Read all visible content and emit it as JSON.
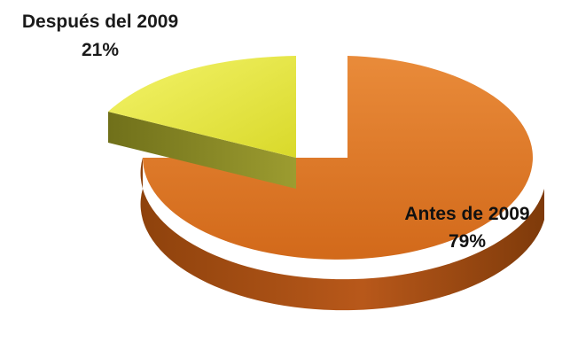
{
  "chart_data": {
    "type": "pie",
    "title": "",
    "style": "3d-exploded",
    "slices": [
      {
        "name": "Antes de 2009",
        "percent_label": "79%",
        "value": 79,
        "color": "#E07A22",
        "label_color": "#111111"
      },
      {
        "name": "Después del 2009",
        "percent_label": "21%",
        "value": 21,
        "color": "#E8E83A",
        "label_color": "#1A1A1A"
      }
    ]
  }
}
